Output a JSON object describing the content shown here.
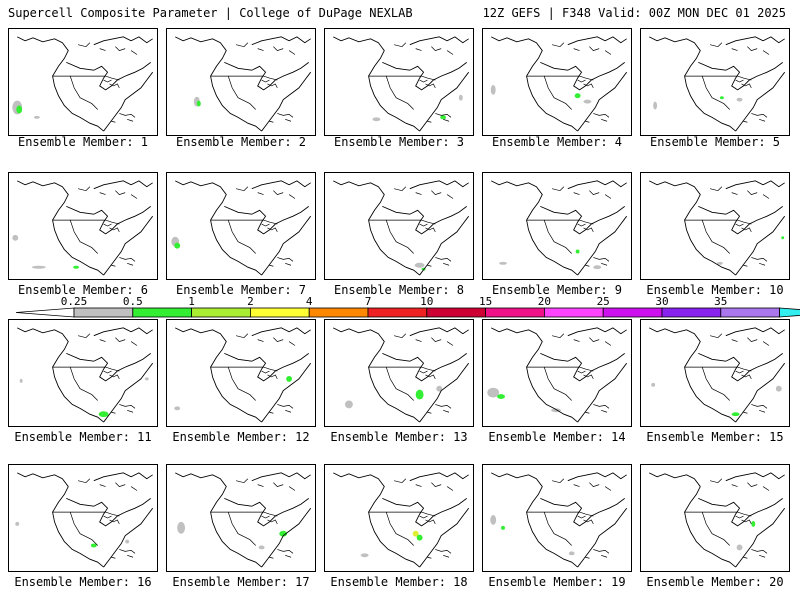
{
  "header": {
    "title": "Supercell Composite Parameter | College of DuPage NEXLAB",
    "run_info": "12Z GEFS | F348 Valid: 00Z MON DEC 01 2025"
  },
  "members": [
    "Ensemble Member: 1",
    "Ensemble Member: 2",
    "Ensemble Member: 3",
    "Ensemble Member: 4",
    "Ensemble Member: 5",
    "Ensemble Member: 6",
    "Ensemble Member: 7",
    "Ensemble Member: 8",
    "Ensemble Member: 9",
    "Ensemble Member: 10",
    "Ensemble Member: 11",
    "Ensemble Member: 12",
    "Ensemble Member: 13",
    "Ensemble Member: 14",
    "Ensemble Member: 15",
    "Ensemble Member: 16",
    "Ensemble Member: 17",
    "Ensemble Member: 18",
    "Ensemble Member: 19",
    "Ensemble Member: 20"
  ],
  "colorbar": {
    "labels": [
      "0.25",
      "0.5",
      "1",
      "2",
      "4",
      "7",
      "10",
      "15",
      "20",
      "25",
      "30",
      "35"
    ],
    "colors": [
      "#c0c0c0",
      "#33ee33",
      "#aaee33",
      "#ffff33",
      "#ff8800",
      "#ee2222",
      "#cc0033",
      "#ee1188",
      "#ff44ff",
      "#cc11ee",
      "#8822ee",
      "#aa77ee",
      "#33eeee"
    ]
  }
}
